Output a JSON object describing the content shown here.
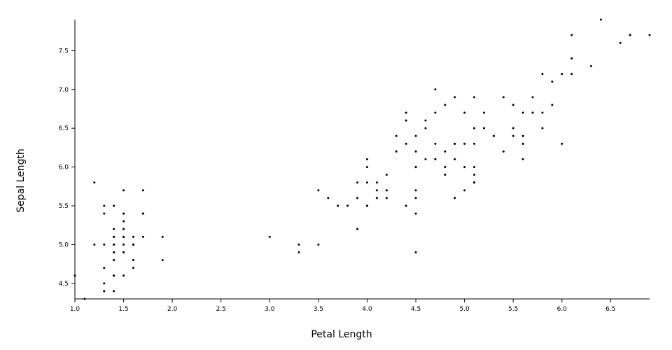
{
  "chart_data": {
    "type": "scatter",
    "x_label": "Petal Length",
    "y_label": "Sepal Length",
    "color": "#000000",
    "x": [
      1.4,
      1.4,
      1.3,
      1.5,
      1.4,
      1.7,
      1.4,
      1.5,
      1.4,
      1.5,
      1.5,
      1.6,
      1.4,
      1.1,
      1.2,
      1.5,
      1.3,
      1.4,
      1.7,
      1.5,
      1.7,
      1.5,
      1.0,
      1.7,
      1.9,
      1.6,
      1.6,
      1.5,
      1.4,
      1.6,
      1.6,
      1.5,
      1.5,
      1.4,
      1.5,
      1.2,
      1.3,
      1.4,
      1.3,
      1.5,
      1.3,
      1.3,
      1.3,
      1.6,
      1.9,
      1.4,
      1.6,
      1.4,
      1.5,
      1.4,
      4.7,
      4.5,
      4.9,
      4.0,
      4.6,
      4.5,
      4.7,
      3.3,
      4.6,
      3.9,
      3.5,
      4.2,
      4.0,
      4.7,
      3.6,
      4.4,
      4.5,
      4.1,
      4.5,
      3.9,
      4.8,
      4.0,
      4.9,
      4.7,
      4.3,
      4.4,
      4.8,
      5.0,
      4.5,
      3.5,
      3.8,
      3.7,
      3.9,
      5.1,
      4.5,
      4.5,
      4.7,
      4.4,
      4.1,
      4.0,
      4.4,
      4.6,
      4.0,
      3.3,
      4.2,
      4.2,
      4.2,
      4.3,
      3.0,
      4.1,
      6.0,
      5.1,
      5.9,
      5.6,
      5.8,
      6.6,
      4.5,
      6.3,
      5.8,
      6.1,
      5.1,
      5.3,
      5.5,
      5.0,
      5.1,
      5.3,
      5.5,
      6.7,
      6.9,
      5.0,
      5.7,
      4.9,
      6.7,
      4.9,
      5.7,
      6.0,
      4.8,
      4.9,
      5.6,
      5.8,
      6.1,
      6.4,
      5.6,
      5.1,
      5.6,
      6.1,
      5.6,
      5.5,
      4.8,
      5.4,
      5.6,
      5.1,
      5.1,
      5.9,
      5.7,
      5.2,
      5.0,
      5.2,
      5.4,
      5.1
    ],
    "y": [
      5.1,
      4.9,
      4.7,
      4.6,
      5.0,
      5.4,
      4.6,
      5.0,
      4.4,
      4.9,
      5.4,
      4.8,
      4.8,
      4.3,
      5.8,
      5.7,
      5.4,
      5.1,
      5.7,
      5.1,
      5.4,
      5.1,
      4.6,
      5.1,
      4.8,
      5.0,
      5.0,
      5.2,
      5.2,
      4.7,
      4.8,
      5.4,
      5.2,
      5.5,
      4.9,
      5.0,
      5.5,
      4.9,
      4.4,
      5.1,
      5.0,
      4.5,
      4.4,
      5.0,
      5.1,
      4.8,
      5.1,
      4.6,
      5.3,
      5.0,
      7.0,
      6.4,
      6.9,
      5.5,
      6.5,
      5.7,
      6.3,
      4.9,
      6.6,
      5.2,
      5.0,
      5.9,
      6.0,
      6.1,
      5.6,
      6.7,
      5.6,
      5.8,
      6.2,
      5.6,
      5.9,
      6.1,
      6.3,
      6.1,
      6.4,
      6.6,
      6.8,
      6.7,
      6.0,
      5.7,
      5.5,
      5.5,
      5.8,
      6.0,
      5.4,
      6.0,
      6.7,
      6.3,
      5.6,
      5.5,
      5.5,
      6.1,
      5.8,
      5.0,
      5.6,
      5.7,
      5.7,
      6.2,
      5.1,
      5.7,
      6.3,
      5.8,
      7.1,
      6.3,
      6.5,
      7.6,
      4.9,
      7.3,
      6.7,
      7.2,
      6.5,
      6.4,
      6.8,
      5.7,
      5.8,
      6.4,
      6.5,
      7.7,
      7.7,
      6.0,
      6.9,
      5.6,
      7.7,
      6.3,
      6.7,
      7.2,
      6.2,
      6.1,
      6.4,
      7.2,
      7.4,
      7.9,
      6.4,
      6.3,
      6.1,
      7.7,
      6.3,
      6.4,
      6.0,
      6.9,
      6.7,
      6.9,
      5.8,
      6.8,
      6.7,
      6.7,
      6.3,
      6.5,
      6.2,
      5.9
    ],
    "xlim": [
      1.0,
      6.9
    ],
    "ylim": [
      4.3,
      7.9
    ],
    "xticks": [
      {
        "value": 1.0,
        "label": "1.0"
      },
      1.5,
      {
        "value": 2.0,
        "label": "2.0"
      },
      2.5,
      {
        "value": 3.0,
        "label": "3.0"
      },
      3.5,
      {
        "value": 4.0,
        "label": "4.0"
      },
      4.5,
      {
        "value": 5.0,
        "label": "5.0"
      },
      5.5,
      {
        "value": 6.0,
        "label": "6.0"
      },
      6.5
    ],
    "yticks": [
      4.5,
      {
        "value": 5.0,
        "label": "5.0"
      },
      5.5,
      {
        "value": 6.0,
        "label": "6.0"
      },
      6.5,
      {
        "value": 7.0,
        "label": "7.0"
      },
      7.5
    ]
  }
}
